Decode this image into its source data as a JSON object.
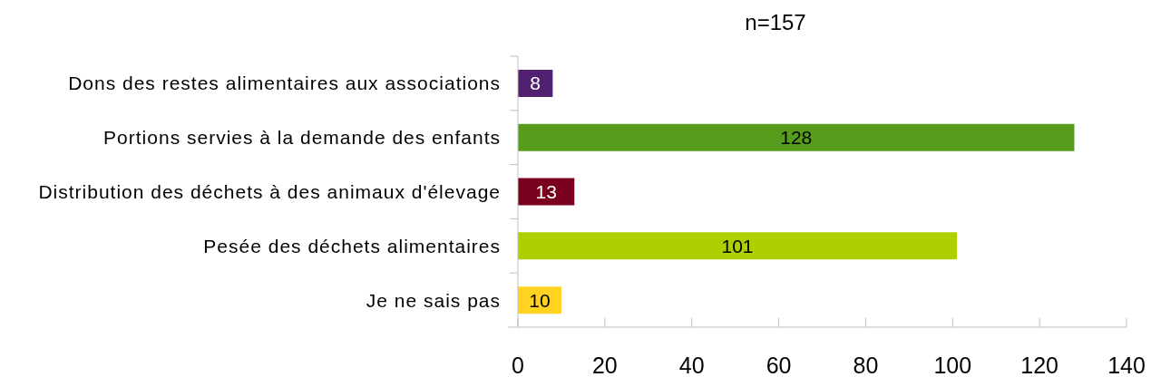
{
  "chart_data": {
    "type": "bar",
    "orientation": "horizontal",
    "title": "n=157",
    "categories": [
      "Dons des restes alimentaires aux associations",
      "Portions servies à la demande des enfants",
      "Distribution des déchets à des animaux d'élevage",
      "Pesée des déchets alimentaires",
      "Je ne sais pas"
    ],
    "values": [
      8,
      128,
      13,
      101,
      10
    ],
    "colors": [
      "#4f2170",
      "#589c1e",
      "#7a0020",
      "#afd000",
      "#ffd320"
    ],
    "xlim": [
      0,
      140
    ],
    "xticks": [
      0,
      20,
      40,
      60,
      80,
      100,
      120,
      140
    ],
    "data_labels": true
  }
}
